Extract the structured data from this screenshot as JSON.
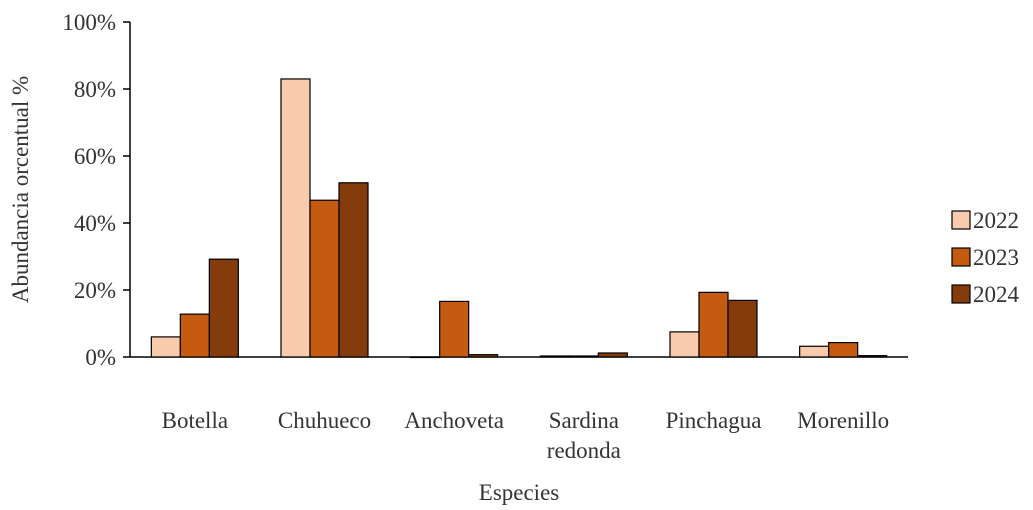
{
  "chart_data": {
    "type": "bar",
    "title": "",
    "xlabel": "Especies",
    "ylabel": "Abundancia orcentual %",
    "ylim": [
      0,
      1
    ],
    "y_ticks": [
      "0%",
      "20%",
      "40%",
      "60%",
      "80%",
      "100%"
    ],
    "y_tick_values": [
      0,
      0.2,
      0.4,
      0.6,
      0.8,
      1.0
    ],
    "categories": [
      [
        "Botella"
      ],
      [
        "Chuhueco"
      ],
      [
        "Anchoveta"
      ],
      [
        "Sardina",
        "redonda"
      ],
      [
        "Pinchagua"
      ],
      [
        "Morenillo"
      ]
    ],
    "series": [
      {
        "name": "2022",
        "color": "#F8CBAD",
        "values": [
          0.06,
          0.83,
          0.0,
          0.003,
          0.075,
          0.032
        ]
      },
      {
        "name": "2023",
        "color": "#C55A11",
        "values": [
          0.128,
          0.468,
          0.166,
          0.003,
          0.193,
          0.043
        ]
      },
      {
        "name": "2024",
        "color": "#843C0C",
        "values": [
          0.292,
          0.52,
          0.007,
          0.012,
          0.169,
          0.004
        ]
      }
    ],
    "legend_position": "right",
    "grid": false
  }
}
